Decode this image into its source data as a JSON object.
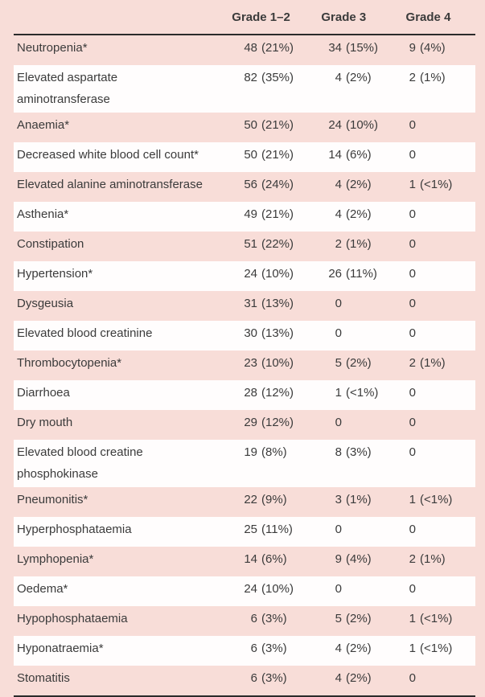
{
  "header": {
    "grade12": "Grade 1–2",
    "grade3": "Grade 3",
    "grade4": "Grade 4"
  },
  "colors": {
    "page_background": "#f8ddd8",
    "stripe_row": "#fffdfd",
    "text": "#3b3b3b",
    "rule": "#2b2b2b"
  },
  "table": {
    "rows": [
      {
        "label": "Neutropenia*",
        "g12": [
          "48",
          "(21%)"
        ],
        "g3": [
          "34",
          "(15%)"
        ],
        "g4": [
          "9",
          "(4%)"
        ]
      },
      {
        "label": "Elevated aspartate\naminotransferase",
        "g12": [
          "82",
          "(35%)"
        ],
        "g3": [
          "4",
          "(2%)"
        ],
        "g4": [
          "2",
          "(1%)"
        ]
      },
      {
        "label": "Anaemia*",
        "g12": [
          "50",
          "(21%)"
        ],
        "g3": [
          "24",
          "(10%)"
        ],
        "g4": [
          "0",
          ""
        ]
      },
      {
        "label": "Decreased white blood cell count*",
        "g12": [
          "50",
          "(21%)"
        ],
        "g3": [
          "14",
          "(6%)"
        ],
        "g4": [
          "0",
          ""
        ]
      },
      {
        "label": "Elevated alanine aminotransferase",
        "g12": [
          "56",
          "(24%)"
        ],
        "g3": [
          "4",
          "(2%)"
        ],
        "g4": [
          "1",
          "(<1%)"
        ]
      },
      {
        "label": "Asthenia*",
        "g12": [
          "49",
          "(21%)"
        ],
        "g3": [
          "4",
          "(2%)"
        ],
        "g4": [
          "0",
          ""
        ]
      },
      {
        "label": "Constipation",
        "g12": [
          "51",
          "(22%)"
        ],
        "g3": [
          "2",
          "(1%)"
        ],
        "g4": [
          "0",
          ""
        ]
      },
      {
        "label": "Hypertension*",
        "g12": [
          "24",
          "(10%)"
        ],
        "g3": [
          "26",
          "(11%)"
        ],
        "g4": [
          "0",
          ""
        ]
      },
      {
        "label": "Dysgeusia",
        "g12": [
          "31",
          "(13%)"
        ],
        "g3": [
          "0",
          ""
        ],
        "g4": [
          "0",
          ""
        ]
      },
      {
        "label": "Elevated blood creatinine",
        "g12": [
          "30",
          "(13%)"
        ],
        "g3": [
          "0",
          ""
        ],
        "g4": [
          "0",
          ""
        ]
      },
      {
        "label": "Thrombocytopenia*",
        "g12": [
          "23",
          "(10%)"
        ],
        "g3": [
          "5",
          "(2%)"
        ],
        "g4": [
          "2",
          "(1%)"
        ]
      },
      {
        "label": "Diarrhoea",
        "g12": [
          "28",
          "(12%)"
        ],
        "g3": [
          "1",
          "(<1%)"
        ],
        "g4": [
          "0",
          ""
        ]
      },
      {
        "label": "Dry mouth",
        "g12": [
          "29",
          "(12%)"
        ],
        "g3": [
          "0",
          ""
        ],
        "g4": [
          "0",
          ""
        ]
      },
      {
        "label": "Elevated blood creatine\nphosphokinase",
        "g12": [
          "19",
          "(8%)"
        ],
        "g3": [
          "8",
          "(3%)"
        ],
        "g4": [
          "0",
          ""
        ]
      },
      {
        "label": "Pneumonitis*",
        "g12": [
          "22",
          "(9%)"
        ],
        "g3": [
          "3",
          "(1%)"
        ],
        "g4": [
          "1",
          "(<1%)"
        ]
      },
      {
        "label": "Hyperphosphataemia",
        "g12": [
          "25",
          "(11%)"
        ],
        "g3": [
          "0",
          ""
        ],
        "g4": [
          "0",
          ""
        ]
      },
      {
        "label": "Lymphopenia*",
        "g12": [
          "14",
          "(6%)"
        ],
        "g3": [
          "9",
          "(4%)"
        ],
        "g4": [
          "2",
          "(1%)"
        ]
      },
      {
        "label": "Oedema*",
        "g12": [
          "24",
          "(10%)"
        ],
        "g3": [
          "0",
          ""
        ],
        "g4": [
          "0",
          ""
        ]
      },
      {
        "label": "Hypophosphataemia",
        "g12": [
          "6",
          "(3%)"
        ],
        "g3": [
          "5",
          "(2%)"
        ],
        "g4": [
          "1",
          "(<1%)"
        ]
      },
      {
        "label": "Hyponatraemia*",
        "g12": [
          "6",
          "(3%)"
        ],
        "g3": [
          "4",
          "(2%)"
        ],
        "g4": [
          "1",
          "(<1%)"
        ]
      },
      {
        "label": "Stomatitis",
        "g12": [
          "6",
          "(3%)"
        ],
        "g3": [
          "4",
          "(2%)"
        ],
        "g4": [
          "0",
          ""
        ]
      }
    ]
  }
}
